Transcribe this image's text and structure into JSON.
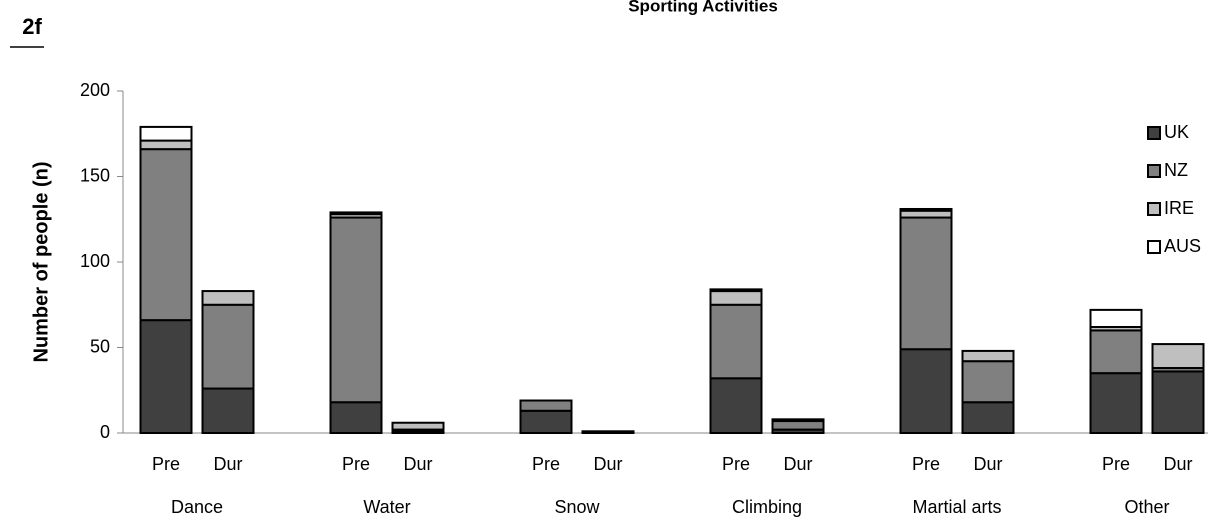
{
  "panel_label": "2f",
  "chart_data": {
    "type": "stacked_bar",
    "title": "Sporting Activities",
    "ylabel": "Number of people (n)",
    "groups": [
      "Dance",
      "Water",
      "Snow",
      "Climbing",
      "Martial arts",
      "Other"
    ],
    "categories": [
      "Pre",
      "Dur",
      "Pre",
      "Dur",
      "Pre",
      "Dur",
      "Pre",
      "Dur",
      "Pre",
      "Dur",
      "Pre",
      "Dur"
    ],
    "series": [
      {
        "name": "UK",
        "color": "#404040",
        "values": [
          66,
          26,
          18,
          1,
          13,
          1,
          32,
          2,
          49,
          18,
          35,
          36
        ]
      },
      {
        "name": "NZ",
        "color": "#808080",
        "values": [
          100,
          49,
          108,
          1,
          6,
          0,
          43,
          5,
          77,
          24,
          25,
          2
        ]
      },
      {
        "name": "IRE",
        "color": "#bfbfbf",
        "values": [
          5,
          8,
          2,
          4,
          0,
          0,
          8,
          1,
          4,
          6,
          2,
          14
        ]
      },
      {
        "name": "AUS",
        "color": "#ffffff",
        "values": [
          8,
          0,
          1,
          0,
          0,
          0,
          1,
          0,
          1,
          0,
          10,
          0
        ]
      }
    ],
    "ylim": [
      0,
      200
    ],
    "yticks": [
      0,
      50,
      100,
      150,
      200
    ],
    "legend": "upper right"
  }
}
